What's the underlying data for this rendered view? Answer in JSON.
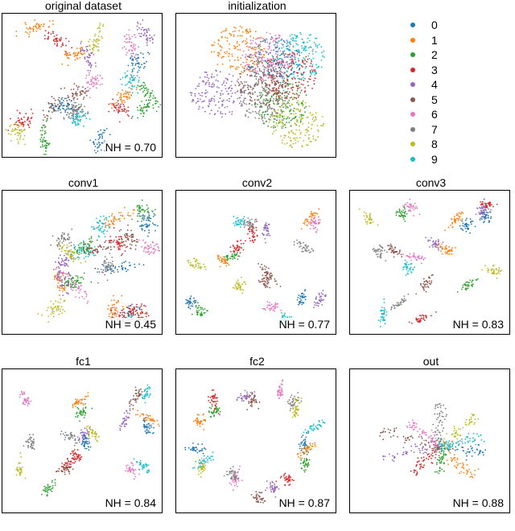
{
  "colors": [
    "#1f77b4",
    "#ff7f0e",
    "#2ca02c",
    "#d62728",
    "#9467bd",
    "#8c564b",
    "#e377c2",
    "#7f7f7f",
    "#bcbd22",
    "#17becf"
  ],
  "legend": {
    "items": [
      {
        "label": "0",
        "color": "#1f77b4"
      },
      {
        "label": "1",
        "color": "#ff7f0e"
      },
      {
        "label": "2",
        "color": "#2ca02c"
      },
      {
        "label": "3",
        "color": "#d62728"
      },
      {
        "label": "4",
        "color": "#9467bd"
      },
      {
        "label": "5",
        "color": "#8c564b"
      },
      {
        "label": "6",
        "color": "#e377c2"
      },
      {
        "label": "7",
        "color": "#7f7f7f"
      },
      {
        "label": "8",
        "color": "#bcbd22"
      },
      {
        "label": "9",
        "color": "#17becf"
      }
    ]
  },
  "chart_data": [
    {
      "type": "scatter",
      "title": "original dataset",
      "annotation": "NH = 0.70",
      "nh": 0.7,
      "layout_style": "loose"
    },
    {
      "type": "scatter",
      "title": "initialization",
      "annotation": "",
      "nh": null,
      "layout_style": "blob"
    },
    {
      "type": "scatter",
      "title": "conv1",
      "annotation": "NH = 0.45",
      "nh": 0.45,
      "layout_style": "loose"
    },
    {
      "type": "scatter",
      "title": "conv2",
      "annotation": "NH = 0.77",
      "nh": 0.77,
      "layout_style": "clusters"
    },
    {
      "type": "scatter",
      "title": "conv3",
      "annotation": "NH = 0.83",
      "nh": 0.83,
      "layout_style": "clusters"
    },
    {
      "type": "scatter",
      "title": "fc1",
      "annotation": "NH = 0.84",
      "nh": 0.84,
      "layout_style": "clusters"
    },
    {
      "type": "scatter",
      "title": "fc2",
      "annotation": "NH = 0.87",
      "nh": 0.87,
      "layout_style": "ring"
    },
    {
      "type": "scatter",
      "title": "out",
      "annotation": "NH = 0.88",
      "nh": 0.88,
      "layout_style": "star"
    }
  ]
}
